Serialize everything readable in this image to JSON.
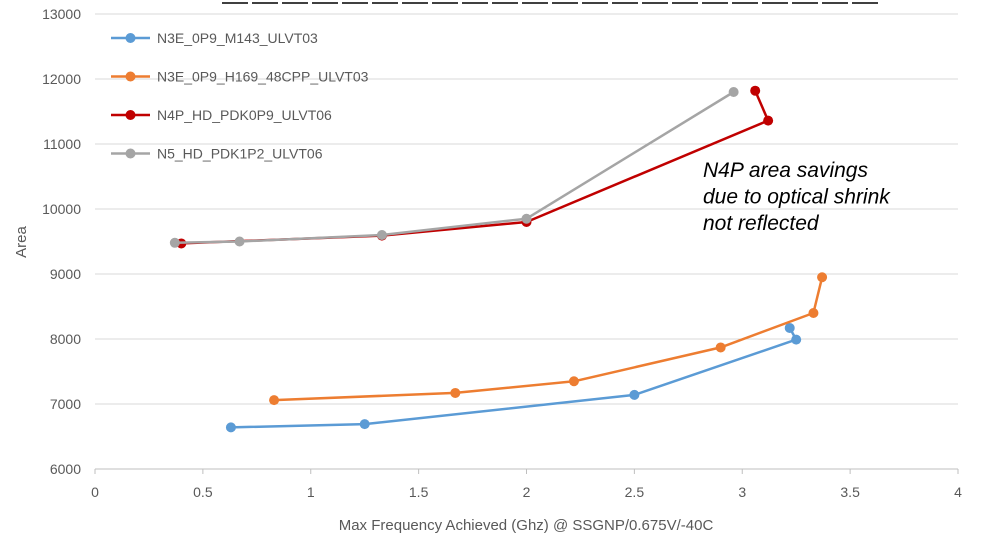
{
  "chart_data": {
    "type": "line",
    "title": "",
    "xlabel": "Max Frequency Achieved (Ghz) @ SSGNP/0.675V/-40C",
    "ylabel": "Area",
    "xlim": [
      0,
      4
    ],
    "ylim": [
      6000,
      13000
    ],
    "xticks": [
      0,
      0.5,
      1,
      1.5,
      2,
      2.5,
      3,
      3.5,
      4
    ],
    "xtick_labels": [
      "0",
      "0.5",
      "1",
      "1.5",
      "2",
      "2.5",
      "3",
      "3.5",
      "4"
    ],
    "yticks": [
      6000,
      7000,
      8000,
      9000,
      10000,
      11000,
      12000,
      13000
    ],
    "ytick_labels": [
      "6000",
      "7000",
      "8000",
      "9000",
      "10000",
      "11000",
      "12000",
      "13000"
    ],
    "grid": "horizontal",
    "legend_position": "top-left",
    "annotation": [
      "N4P area savings",
      "due to optical shrink",
      "not reflected"
    ],
    "series": [
      {
        "name": "N3E_0P9_M143_ULVT03",
        "color": "#5b9bd5",
        "x": [
          0.63,
          1.25,
          2.5,
          3.25,
          3.22
        ],
        "y": [
          6640,
          6690,
          7140,
          7990,
          8170
        ]
      },
      {
        "name": "N3E_0P9_H169_48CPP_ULVT03",
        "color": "#ed7d31",
        "x": [
          0.83,
          1.67,
          2.22,
          2.9,
          3.33,
          3.37
        ],
        "y": [
          7060,
          7170,
          7350,
          7870,
          8400,
          8950
        ]
      },
      {
        "name": "N4P_HD_PDK0P9_ULVT06",
        "color": "#c00000",
        "x": [
          0.4,
          1.33,
          2.0,
          3.12,
          3.06
        ],
        "y": [
          9470,
          9590,
          9800,
          11360,
          11820
        ]
      },
      {
        "name": "N5_HD_PDK1P2_ULVT06",
        "color": "#a5a5a5",
        "x": [
          0.37,
          0.67,
          1.33,
          2.0,
          2.96
        ],
        "y": [
          9480,
          9500,
          9600,
          9850,
          11800
        ]
      }
    ]
  }
}
